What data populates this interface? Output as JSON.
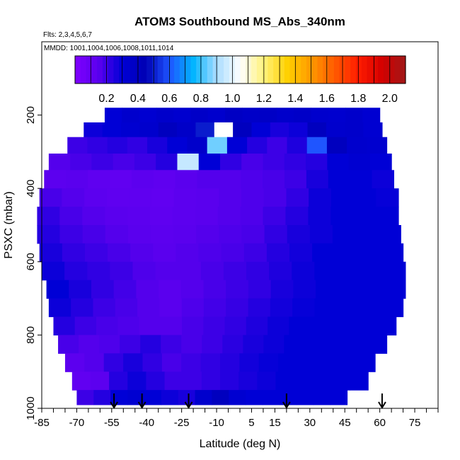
{
  "chart_data": {
    "type": "heatmap",
    "title": "ATOM3 Southbound MS_Abs_340nm",
    "flights_label": "Flts: 2,3,4,5,6,7",
    "mmdd_label": "MMDD: 1001,1004,1006,1008,1011,1014",
    "xlabel": "Latitude (deg N)",
    "ylabel": "PSXC (mbar)",
    "xlim": [
      -85,
      85
    ],
    "ylim": [
      1000,
      0
    ],
    "x_ticks": [
      -85,
      -70,
      -55,
      -40,
      -25,
      -10,
      5,
      15,
      30,
      45,
      60,
      75
    ],
    "y_ticks": [
      200,
      400,
      600,
      800,
      1000
    ],
    "colorbar": {
      "min": 0,
      "max": 2.1,
      "ticks": [
        0.2,
        0.4,
        0.6,
        0.8,
        1.0,
        1.2,
        1.4,
        1.6,
        1.8,
        2.0
      ],
      "tick_labels": [
        "0.2",
        "0.4",
        "0.6",
        "0.8",
        "1.0",
        "1.2",
        "1.4",
        "1.6",
        "1.8",
        "2.0"
      ],
      "colors": [
        "#7f00ff",
        "#5a00ee",
        "#0000d6",
        "#0000b4",
        "#1f55ff",
        "#00b4ff",
        "#a8dcff",
        "#ffffff",
        "#fff27a",
        "#ffd000",
        "#ff9a00",
        "#ff5a00",
        "#ff1c00",
        "#d40000",
        "#a01818"
      ]
    },
    "profile_latitudes": [
      -54,
      -42,
      -22,
      20,
      61
    ],
    "cross_section": {
      "pressure_rows": [
        [
          180,
          220
        ],
        [
          220,
          260
        ],
        [
          260,
          305
        ],
        [
          305,
          350
        ],
        [
          350,
          400
        ],
        [
          400,
          450
        ],
        [
          450,
          500
        ],
        [
          500,
          550
        ],
        [
          550,
          600
        ],
        [
          600,
          650
        ],
        [
          650,
          700
        ],
        [
          700,
          750
        ],
        [
          750,
          800
        ],
        [
          800,
          850
        ],
        [
          850,
          900
        ],
        [
          900,
          950
        ],
        [
          950,
          990
        ]
      ],
      "lat_extent": [
        [
          -58,
          60
        ],
        [
          -67,
          61
        ],
        [
          -74,
          63
        ],
        [
          -82,
          65
        ],
        [
          -84,
          66
        ],
        [
          -86,
          68
        ],
        [
          -87,
          68
        ],
        [
          -87,
          69
        ],
        [
          -86,
          70
        ],
        [
          -85,
          71
        ],
        [
          -83,
          71
        ],
        [
          -82,
          70
        ],
        [
          -80,
          67
        ],
        [
          -78,
          63
        ],
        [
          -75,
          58
        ],
        [
          -72,
          55
        ],
        [
          -70,
          46
        ]
      ],
      "values": [
        [
          0.3,
          0.34,
          0.32,
          0.35,
          0.33,
          0.36,
          0.34,
          0.38,
          0.36,
          0.37,
          0.35,
          0.36,
          0.34,
          0.33,
          0.35,
          0.32
        ],
        [
          0.28,
          0.3,
          0.32,
          0.34,
          0.4,
          0.36,
          0.5,
          1.05,
          0.4,
          0.3,
          0.26,
          0.28,
          0.4,
          0.34,
          0.35,
          0.32
        ],
        [
          0.2,
          0.22,
          0.24,
          0.22,
          0.26,
          0.3,
          0.35,
          0.85,
          0.3,
          0.24,
          0.2,
          0.25,
          0.6,
          0.4,
          0.34,
          0.33
        ],
        [
          0.16,
          0.18,
          0.2,
          0.18,
          0.2,
          0.24,
          0.95,
          0.3,
          0.22,
          0.18,
          0.2,
          0.22,
          0.24,
          0.3,
          0.32,
          0.3
        ],
        [
          0.14,
          0.15,
          0.13,
          0.12,
          0.14,
          0.13,
          0.15,
          0.16,
          0.16,
          0.17,
          0.18,
          0.2,
          0.26,
          0.3,
          0.3,
          0.28
        ],
        [
          0.18,
          0.16,
          0.14,
          0.13,
          0.13,
          0.12,
          0.14,
          0.15,
          0.16,
          0.17,
          0.18,
          0.22,
          0.28,
          0.3,
          0.3,
          0.29
        ],
        [
          0.22,
          0.18,
          0.16,
          0.15,
          0.14,
          0.13,
          0.14,
          0.15,
          0.16,
          0.17,
          0.2,
          0.24,
          0.28,
          0.3,
          0.3,
          0.3
        ],
        [
          0.24,
          0.2,
          0.18,
          0.16,
          0.15,
          0.14,
          0.15,
          0.16,
          0.17,
          0.18,
          0.22,
          0.26,
          0.28,
          0.3,
          0.3,
          0.3
        ],
        [
          0.26,
          0.22,
          0.2,
          0.18,
          0.16,
          0.15,
          0.16,
          0.17,
          0.18,
          0.2,
          0.24,
          0.27,
          0.3,
          0.3,
          0.3,
          0.3
        ],
        [
          0.28,
          0.24,
          0.22,
          0.2,
          0.17,
          0.16,
          0.16,
          0.18,
          0.2,
          0.22,
          0.25,
          0.28,
          0.3,
          0.3,
          0.3,
          0.3
        ],
        [
          0.3,
          0.26,
          0.22,
          0.19,
          0.16,
          0.15,
          0.16,
          0.18,
          0.2,
          0.22,
          0.26,
          0.28,
          0.3,
          0.3,
          0.3,
          0.3
        ],
        [
          0.28,
          0.24,
          0.2,
          0.18,
          0.16,
          0.15,
          0.17,
          0.19,
          0.21,
          0.24,
          0.27,
          0.29,
          0.3,
          0.3,
          0.3,
          0.3
        ],
        [
          0.24,
          0.2,
          0.18,
          0.17,
          0.16,
          0.16,
          0.18,
          0.2,
          0.22,
          0.25,
          0.28,
          0.3,
          0.3,
          0.3,
          0.3,
          0.3
        ],
        [
          0.18,
          0.16,
          0.17,
          0.2,
          0.24,
          0.2,
          0.18,
          0.2,
          0.23,
          0.26,
          0.28,
          0.3,
          0.3,
          0.3,
          0.3,
          0.3
        ],
        [
          0.14,
          0.16,
          0.22,
          0.26,
          0.22,
          0.18,
          0.2,
          0.22,
          0.24,
          0.27,
          0.29,
          0.3,
          0.3,
          0.3,
          0.3,
          0.3
        ],
        [
          0.12,
          0.14,
          0.24,
          0.28,
          0.24,
          0.2,
          0.2,
          0.22,
          0.24,
          0.26,
          0.28,
          0.3,
          0.3,
          0.3,
          0.3,
          0.3
        ],
        [
          0.2,
          0.24,
          0.3,
          0.32,
          0.3,
          0.28,
          0.26,
          0.34,
          0.4,
          0.32,
          0.3,
          0.3,
          0.3,
          0.3,
          0.3,
          0.3
        ]
      ]
    }
  }
}
